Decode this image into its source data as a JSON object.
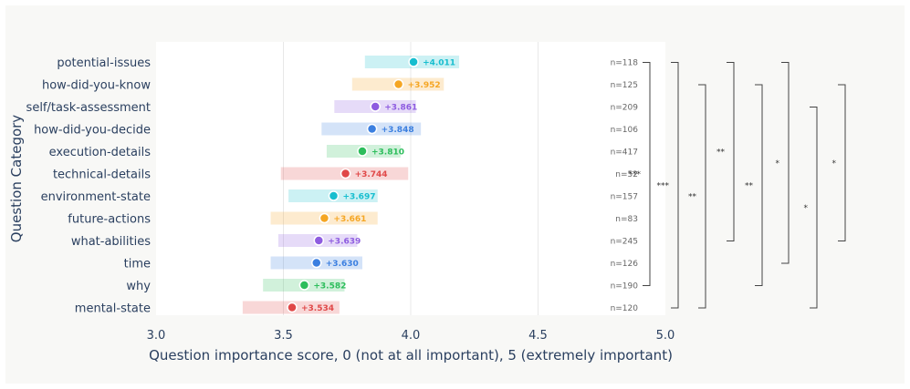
{
  "colors": {
    "cyan": "#17becf",
    "orange": "#f5a623",
    "purple": "#8e5ce0",
    "blue": "#3b7fe0",
    "green": "#2cbd5b",
    "red": "#e04848",
    "label": "#2a3f5f",
    "bracket": "#444444",
    "grid": "#e8e8e8"
  },
  "chart_data": {
    "type": "scatter",
    "xlabel": "Question importance score, 0 (not at all important), 5 (extremely important)",
    "ylabel": "Question Category",
    "xlim": [
      3.0,
      5.0
    ],
    "xticks": [
      "3.0",
      "3.5",
      "4.0",
      "4.5",
      "5.0"
    ],
    "grid": true,
    "categories": [
      {
        "name": "potential-issues",
        "value": 4.011,
        "label": "+4.011",
        "lo": 3.82,
        "hi": 4.19,
        "n": "n=118",
        "color": "cyan"
      },
      {
        "name": "how-did-you-know",
        "value": 3.952,
        "label": "+3.952",
        "lo": 3.77,
        "hi": 4.13,
        "n": "n=125",
        "color": "orange"
      },
      {
        "name": "self/task-assessment",
        "value": 3.861,
        "label": "+3.861",
        "lo": 3.7,
        "hi": 4.02,
        "n": "n=209",
        "color": "purple"
      },
      {
        "name": "how-did-you-decide",
        "value": 3.848,
        "label": "+3.848",
        "lo": 3.65,
        "hi": 4.04,
        "n": "n=106",
        "color": "blue"
      },
      {
        "name": "execution-details",
        "value": 3.81,
        "label": "+3.810",
        "lo": 3.67,
        "hi": 3.96,
        "n": "n=417",
        "color": "green"
      },
      {
        "name": "technical-details",
        "value": 3.744,
        "label": "+3.744",
        "lo": 3.49,
        "hi": 3.99,
        "n": "n=52",
        "color": "red"
      },
      {
        "name": "environment-state",
        "value": 3.697,
        "label": "+3.697",
        "lo": 3.52,
        "hi": 3.87,
        "n": "n=157",
        "color": "cyan"
      },
      {
        "name": "future-actions",
        "value": 3.661,
        "label": "+3.661",
        "lo": 3.45,
        "hi": 3.87,
        "n": "n=83",
        "color": "orange"
      },
      {
        "name": "what-abilities",
        "value": 3.639,
        "label": "+3.639",
        "lo": 3.48,
        "hi": 3.79,
        "n": "n=245",
        "color": "purple"
      },
      {
        "name": "time",
        "value": 3.63,
        "label": "+3.630",
        "lo": 3.45,
        "hi": 3.81,
        "n": "n=126",
        "color": "blue"
      },
      {
        "name": "why",
        "value": 3.582,
        "label": "+3.582",
        "lo": 3.42,
        "hi": 3.74,
        "n": "n=190",
        "color": "green"
      },
      {
        "name": "mental-state",
        "value": 3.534,
        "label": "+3.534",
        "lo": 3.34,
        "hi": 3.72,
        "n": "n=120",
        "color": "red"
      }
    ],
    "significance": [
      {
        "from": "potential-issues",
        "to": "why",
        "stars": "***"
      },
      {
        "from": "potential-issues",
        "to": "mental-state",
        "stars": "***"
      },
      {
        "from": "how-did-you-know",
        "to": "mental-state",
        "stars": "**"
      },
      {
        "from": "potential-issues",
        "to": "what-abilities",
        "stars": "**"
      },
      {
        "from": "how-did-you-know",
        "to": "why",
        "stars": "**"
      },
      {
        "from": "potential-issues",
        "to": "time",
        "stars": "*"
      },
      {
        "from": "self/task-assessment",
        "to": "mental-state",
        "stars": "*"
      },
      {
        "from": "how-did-you-know",
        "to": "what-abilities",
        "stars": "*"
      }
    ]
  }
}
